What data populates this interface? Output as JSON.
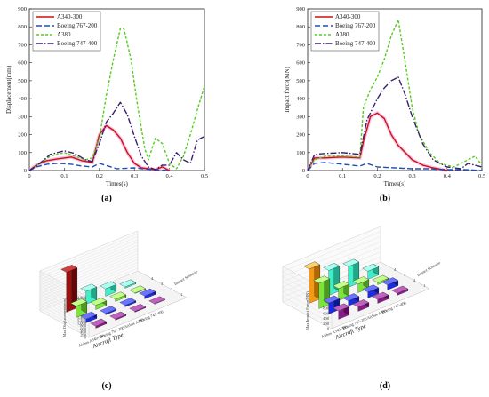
{
  "colors": {
    "A340-300": "#cc1111",
    "Boeing 767-200": "#1f4fb5",
    "A380": "#55cc22",
    "Boeing 747-400": "#3a1f6e"
  },
  "line_charts": [
    {
      "label": "(a)",
      "chart_data": {
        "type": "line",
        "xlabel": "Times(s)",
        "ylabel": "Displacement(mm)",
        "xlim": [
          0,
          0.5
        ],
        "ylim": [
          0,
          900
        ],
        "xticks": [
          "0",
          "0.1",
          "0.2",
          "0.3",
          "0.4",
          "0.5"
        ],
        "yticks": [
          "0",
          "100",
          "200",
          "300",
          "400",
          "500",
          "600",
          "700",
          "800",
          "900"
        ],
        "legend_position": "top-left",
        "series": [
          {
            "name": "A340-300",
            "style": "solid",
            "x": [
              0,
              0.02,
              0.05,
              0.08,
              0.12,
              0.15,
              0.18,
              0.2,
              0.22,
              0.24,
              0.26,
              0.28,
              0.3,
              0.32,
              0.34,
              0.36,
              0.38,
              0.4
            ],
            "y": [
              0,
              30,
              55,
              65,
              75,
              55,
              45,
              200,
              250,
              225,
              180,
              100,
              40,
              15,
              10,
              5,
              20,
              0
            ]
          },
          {
            "name": "Boeing 767-200",
            "style": "dash",
            "x": [
              0,
              0.02,
              0.05,
              0.08,
              0.12,
              0.15,
              0.18,
              0.2,
              0.25,
              0.3,
              0.35,
              0.4
            ],
            "y": [
              0,
              20,
              35,
              40,
              35,
              25,
              20,
              40,
              10,
              15,
              5,
              0
            ]
          },
          {
            "name": "A380",
            "style": "shortdash",
            "x": [
              0,
              0.03,
              0.06,
              0.1,
              0.13,
              0.16,
              0.18,
              0.2,
              0.22,
              0.24,
              0.26,
              0.27,
              0.29,
              0.31,
              0.33,
              0.34,
              0.36,
              0.38,
              0.4,
              0.42,
              0.44,
              0.46,
              0.48,
              0.5
            ],
            "y": [
              0,
              40,
              80,
              100,
              80,
              60,
              70,
              180,
              420,
              620,
              790,
              790,
              620,
              350,
              120,
              60,
              180,
              150,
              40,
              10,
              80,
              200,
              340,
              470
            ]
          },
          {
            "name": "Boeing 747-400",
            "style": "dashdot",
            "x": [
              0,
              0.03,
              0.06,
              0.1,
              0.13,
              0.16,
              0.18,
              0.2,
              0.22,
              0.24,
              0.26,
              0.28,
              0.3,
              0.32,
              0.34,
              0.36,
              0.38,
              0.4,
              0.42,
              0.44,
              0.46,
              0.48,
              0.5
            ],
            "y": [
              0,
              40,
              90,
              110,
              95,
              60,
              50,
              150,
              270,
              320,
              380,
              310,
              190,
              80,
              20,
              5,
              30,
              30,
              100,
              60,
              40,
              170,
              190
            ]
          }
        ]
      }
    },
    {
      "label": "(b)",
      "chart_data": {
        "type": "line",
        "xlabel": "Times(s)",
        "ylabel": "Impact force(MN)",
        "xlim": [
          0,
          0.5
        ],
        "ylim": [
          0,
          900
        ],
        "xticks": [
          "0",
          "0.1",
          "0.2",
          "0.3",
          "0.4",
          "0.5"
        ],
        "yticks": [
          "0",
          "100",
          "200",
          "300",
          "400",
          "500",
          "600",
          "700",
          "800",
          "900"
        ],
        "legend_position": "top-left",
        "series": [
          {
            "name": "A340-300",
            "style": "solid",
            "x": [
              0,
              0.02,
              0.05,
              0.1,
              0.15,
              0.16,
              0.18,
              0.2,
              0.22,
              0.24,
              0.26,
              0.28,
              0.3,
              0.33,
              0.36,
              0.4
            ],
            "y": [
              0,
              70,
              70,
              75,
              70,
              160,
              300,
              320,
              290,
              200,
              140,
              100,
              60,
              30,
              15,
              0
            ]
          },
          {
            "name": "Boeing 767-200",
            "style": "dash",
            "x": [
              0,
              0.02,
              0.05,
              0.1,
              0.15,
              0.17,
              0.2,
              0.25,
              0.3,
              0.35,
              0.4,
              0.45,
              0.5
            ],
            "y": [
              0,
              40,
              45,
              35,
              25,
              40,
              20,
              15,
              10,
              10,
              5,
              5,
              0
            ]
          },
          {
            "name": "A380",
            "style": "shortdash",
            "x": [
              0,
              0.02,
              0.05,
              0.1,
              0.15,
              0.16,
              0.18,
              0.2,
              0.22,
              0.24,
              0.26,
              0.28,
              0.3,
              0.32,
              0.35,
              0.38,
              0.42,
              0.45,
              0.48,
              0.5
            ],
            "y": [
              0,
              60,
              80,
              80,
              75,
              350,
              450,
              520,
              620,
              750,
              840,
              600,
              350,
              200,
              100,
              40,
              20,
              50,
              80,
              30
            ]
          },
          {
            "name": "Boeing 747-400",
            "style": "dashdot",
            "x": [
              0,
              0.02,
              0.05,
              0.1,
              0.15,
              0.17,
              0.2,
              0.22,
              0.24,
              0.26,
              0.28,
              0.3,
              0.33,
              0.36,
              0.4,
              0.44,
              0.46,
              0.5
            ],
            "y": [
              0,
              90,
              95,
              100,
              90,
              280,
              400,
              460,
              500,
              520,
              420,
              300,
              150,
              60,
              20,
              10,
              40,
              20
            ]
          }
        ]
      }
    }
  ],
  "bar3d_charts": [
    {
      "label": "(c)",
      "chart_data": {
        "type": "bar",
        "zlabel": "Max Displacement(mm)",
        "xlabel": "Aircraft Type",
        "ylabel": "Impact Scenario",
        "zticks": [
          "0",
          "200",
          "400",
          "600",
          "800",
          "1,000",
          "1,200",
          "1,400",
          "1,600",
          "1,800",
          "2,000",
          "2,200",
          "2,400",
          "2,600",
          "2,800"
        ],
        "zlim": [
          0,
          2800
        ],
        "aircraft": [
          "Airbus A340-300",
          "Boeing 767-200",
          "Airbus A380",
          "Boeing 747-400"
        ],
        "scenarios": [
          "1",
          "2",
          "3",
          "4"
        ],
        "values": [
          [
            140,
            260,
            800,
            2800
          ],
          [
            80,
            100,
            300,
            900
          ],
          [
            60,
            110,
            160,
            520
          ],
          [
            30,
            200,
            40,
            90
          ]
        ]
      }
    },
    {
      "label": "(d)",
      "chart_data": {
        "type": "bar",
        "zlabel": "Max Impact Force(MN)",
        "xlabel": "Aircraft Type",
        "ylabel": "Impact Scenario",
        "zticks": [
          "0",
          "200",
          "400",
          "600",
          "800",
          "1,000",
          "1,200",
          "1,400"
        ],
        "zlim": [
          0,
          1400
        ],
        "aircraft": [
          "Airbus A340-300",
          "Boeing 767-200",
          "Airbus A380",
          "Boeing 747-400"
        ],
        "scenarios": [
          "1",
          "2",
          "3",
          "4"
        ],
        "values": [
          [
            330,
            430,
            1000,
            1350
          ],
          [
            170,
            200,
            480,
            980
          ],
          [
            150,
            230,
            340,
            820
          ],
          [
            80,
            200,
            80,
            320
          ]
        ]
      }
    }
  ]
}
